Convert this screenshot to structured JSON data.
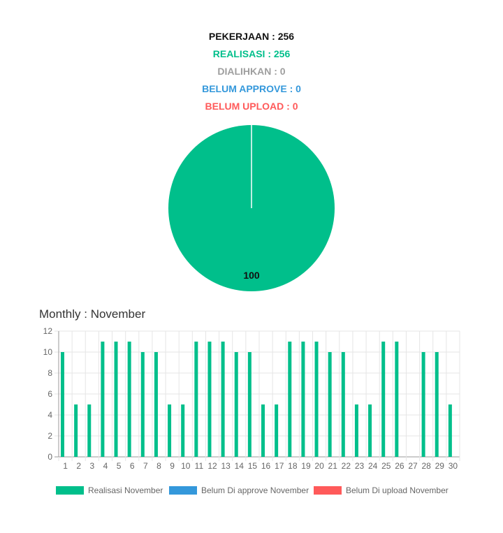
{
  "summary": {
    "pekerjaan": "PEKERJAAN : 256",
    "realisasi": "REALISASI : 256",
    "dialihkan": "DIALIHKAN : 0",
    "belum_approve": "BELUM APPROVE : 0",
    "belum_upload": "BELUM UPLOAD : 0"
  },
  "colors": {
    "pekerjaan": "#111111",
    "realisasi": "#00bf8b",
    "dialihkan": "#9e9e9e",
    "belum_approve": "#3498db",
    "belum_upload": "#ff5a5a"
  },
  "monthly_title": "Monthly : November",
  "chart_data": [
    {
      "type": "pie",
      "categories": [
        "Realisasi",
        "Dialihkan",
        "Belum Approve",
        "Belum Upload"
      ],
      "values": [
        100,
        0,
        0,
        0
      ],
      "data_label": "100",
      "colors": [
        "#00bf8b",
        "#9e9e9e",
        "#3498db",
        "#ff5a5a"
      ]
    },
    {
      "type": "bar",
      "categories": [
        "1",
        "2",
        "3",
        "4",
        "5",
        "6",
        "7",
        "8",
        "9",
        "10",
        "11",
        "12",
        "13",
        "14",
        "15",
        "16",
        "17",
        "18",
        "19",
        "20",
        "21",
        "22",
        "23",
        "24",
        "25",
        "26",
        "27",
        "28",
        "29",
        "30"
      ],
      "series": [
        {
          "name": "Realisasi November",
          "color": "#00bf8b",
          "values": [
            10,
            5,
            5,
            11,
            11,
            11,
            10,
            10,
            5,
            5,
            11,
            11,
            11,
            10,
            10,
            5,
            5,
            11,
            11,
            11,
            10,
            10,
            5,
            5,
            11,
            11,
            0,
            10,
            10,
            5
          ]
        },
        {
          "name": "Belum Di approve November",
          "color": "#3498db",
          "values": [
            0,
            0,
            0,
            0,
            0,
            0,
            0,
            0,
            0,
            0,
            0,
            0,
            0,
            0,
            0,
            0,
            0,
            0,
            0,
            0,
            0,
            0,
            0,
            0,
            0,
            0,
            0,
            0,
            0,
            0
          ]
        },
        {
          "name": "Belum Di upload November",
          "color": "#ff5a5a",
          "values": [
            0,
            0,
            0,
            0,
            0,
            0,
            0,
            0,
            0,
            0,
            0,
            0,
            0,
            0,
            0,
            0,
            0,
            0,
            0,
            0,
            0,
            0,
            0,
            0,
            0,
            0,
            0,
            0,
            0,
            0
          ]
        }
      ],
      "ylim": [
        0,
        12
      ],
      "yticks": [
        "0",
        "2",
        "4",
        "6",
        "8",
        "10",
        "12"
      ],
      "grid": true,
      "legend": "bottom"
    }
  ]
}
